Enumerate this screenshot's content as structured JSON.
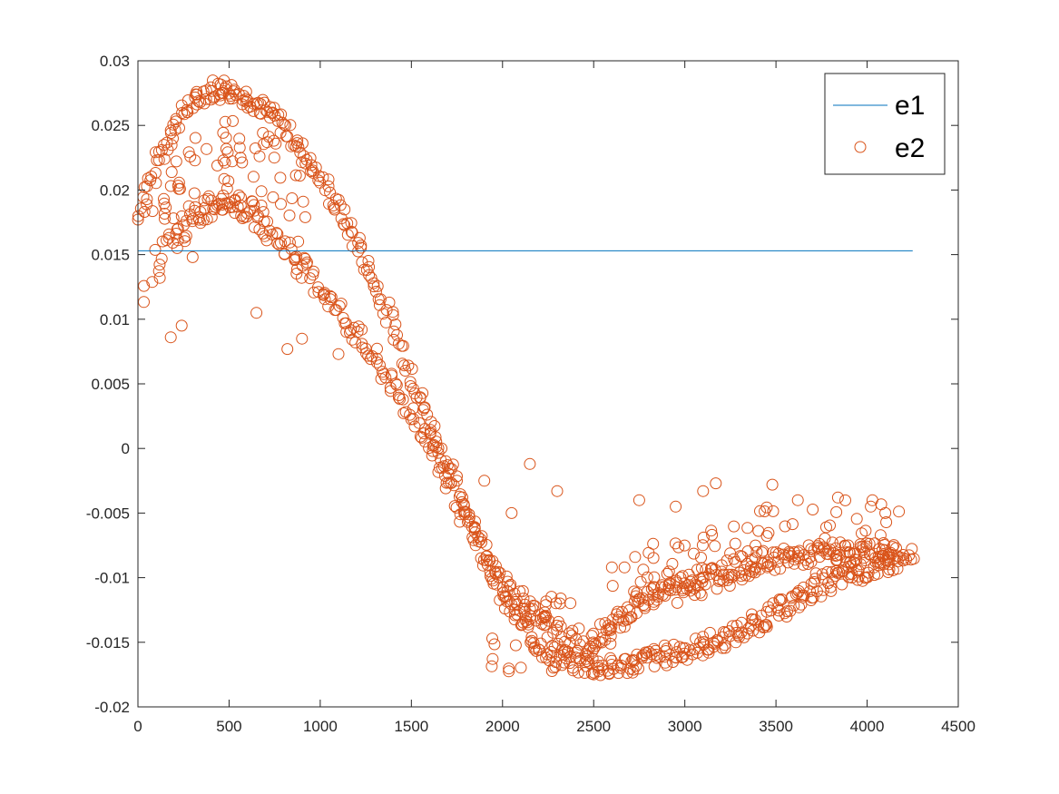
{
  "chart_data": {
    "type": "scatter",
    "xlim": [
      0,
      4500
    ],
    "ylim": [
      -0.02,
      0.03
    ],
    "x_ticks": [
      "0",
      "500",
      "1000",
      "1500",
      "2000",
      "2500",
      "3000",
      "3500",
      "4000",
      "4500"
    ],
    "y_ticks": [
      "-0.02",
      "-0.015",
      "-0.01",
      "-0.005",
      "0",
      "0.005",
      "0.01",
      "0.015",
      "0.02",
      "0.025",
      "0.03"
    ],
    "grid": false,
    "legend_position": "top-right",
    "series": [
      {
        "name": "e1",
        "kind": "line",
        "color": "#0072BD",
        "x": [
          0,
          4250
        ],
        "y": [
          0.0153,
          0.0153
        ]
      },
      {
        "name": "e2",
        "kind": "scatter",
        "marker": "circle-open",
        "color": "#D95319",
        "approx_x_range": [
          0,
          4250
        ],
        "main_band_x": [
          0,
          100,
          200,
          300,
          400,
          470,
          600,
          800,
          1000,
          1200,
          1400,
          1600,
          1750,
          1900,
          2000,
          2100,
          2200,
          2300,
          2450,
          2600,
          2800,
          3000,
          3200,
          3400,
          3600,
          3800,
          4000,
          4150,
          4250
        ],
        "main_band_y": [
          0.018,
          0.022,
          0.025,
          0.0268,
          0.0278,
          0.028,
          0.0272,
          0.025,
          0.021,
          0.016,
          0.0095,
          0.002,
          -0.003,
          -0.008,
          -0.0115,
          -0.0135,
          -0.0152,
          -0.0162,
          -0.0168,
          -0.017,
          -0.0163,
          -0.0157,
          -0.0148,
          -0.0135,
          -0.0118,
          -0.0102,
          -0.0094,
          -0.0088,
          -0.0085
        ],
        "inner_band_x": [
          150,
          300,
          450,
          600,
          800,
          1000,
          1200,
          1400,
          1600,
          1800,
          1950,
          2100,
          2250,
          2400
        ],
        "inner_band_y": [
          0.0155,
          0.0175,
          0.0195,
          0.0185,
          0.0158,
          0.0125,
          0.0088,
          0.0048,
          0.0005,
          -0.0055,
          -0.0095,
          -0.0118,
          -0.0138,
          -0.015
        ],
        "upper_branch_x": [
          2450,
          2700,
          2900,
          3050,
          3200,
          3400,
          3600,
          3800,
          4000,
          4150
        ],
        "upper_branch_y": [
          -0.0155,
          -0.0125,
          -0.0108,
          -0.0102,
          -0.0095,
          -0.0088,
          -0.0084,
          -0.008,
          -0.0081,
          -0.0078
        ],
        "outliers": [
          [
            120,
            0.0132
          ],
          [
            180,
            0.0086
          ],
          [
            240,
            0.0095
          ],
          [
            300,
            0.0148
          ],
          [
            420,
            0.0185
          ],
          [
            650,
            0.0105
          ],
          [
            820,
            0.0077
          ],
          [
            900,
            0.0085
          ],
          [
            1100,
            0.0073
          ],
          [
            1900,
            -0.0025
          ],
          [
            2050,
            -0.005
          ],
          [
            2150,
            -0.0012
          ],
          [
            2300,
            -0.0033
          ],
          [
            2600,
            -0.0092
          ],
          [
            2750,
            -0.004
          ],
          [
            2950,
            -0.0045
          ],
          [
            3100,
            -0.0033
          ],
          [
            3170,
            -0.0027
          ],
          [
            3480,
            -0.0028
          ],
          [
            3620,
            -0.004
          ],
          [
            3840,
            -0.0038
          ],
          [
            4020,
            -0.0045
          ],
          [
            4100,
            -0.005
          ]
        ]
      }
    ]
  }
}
